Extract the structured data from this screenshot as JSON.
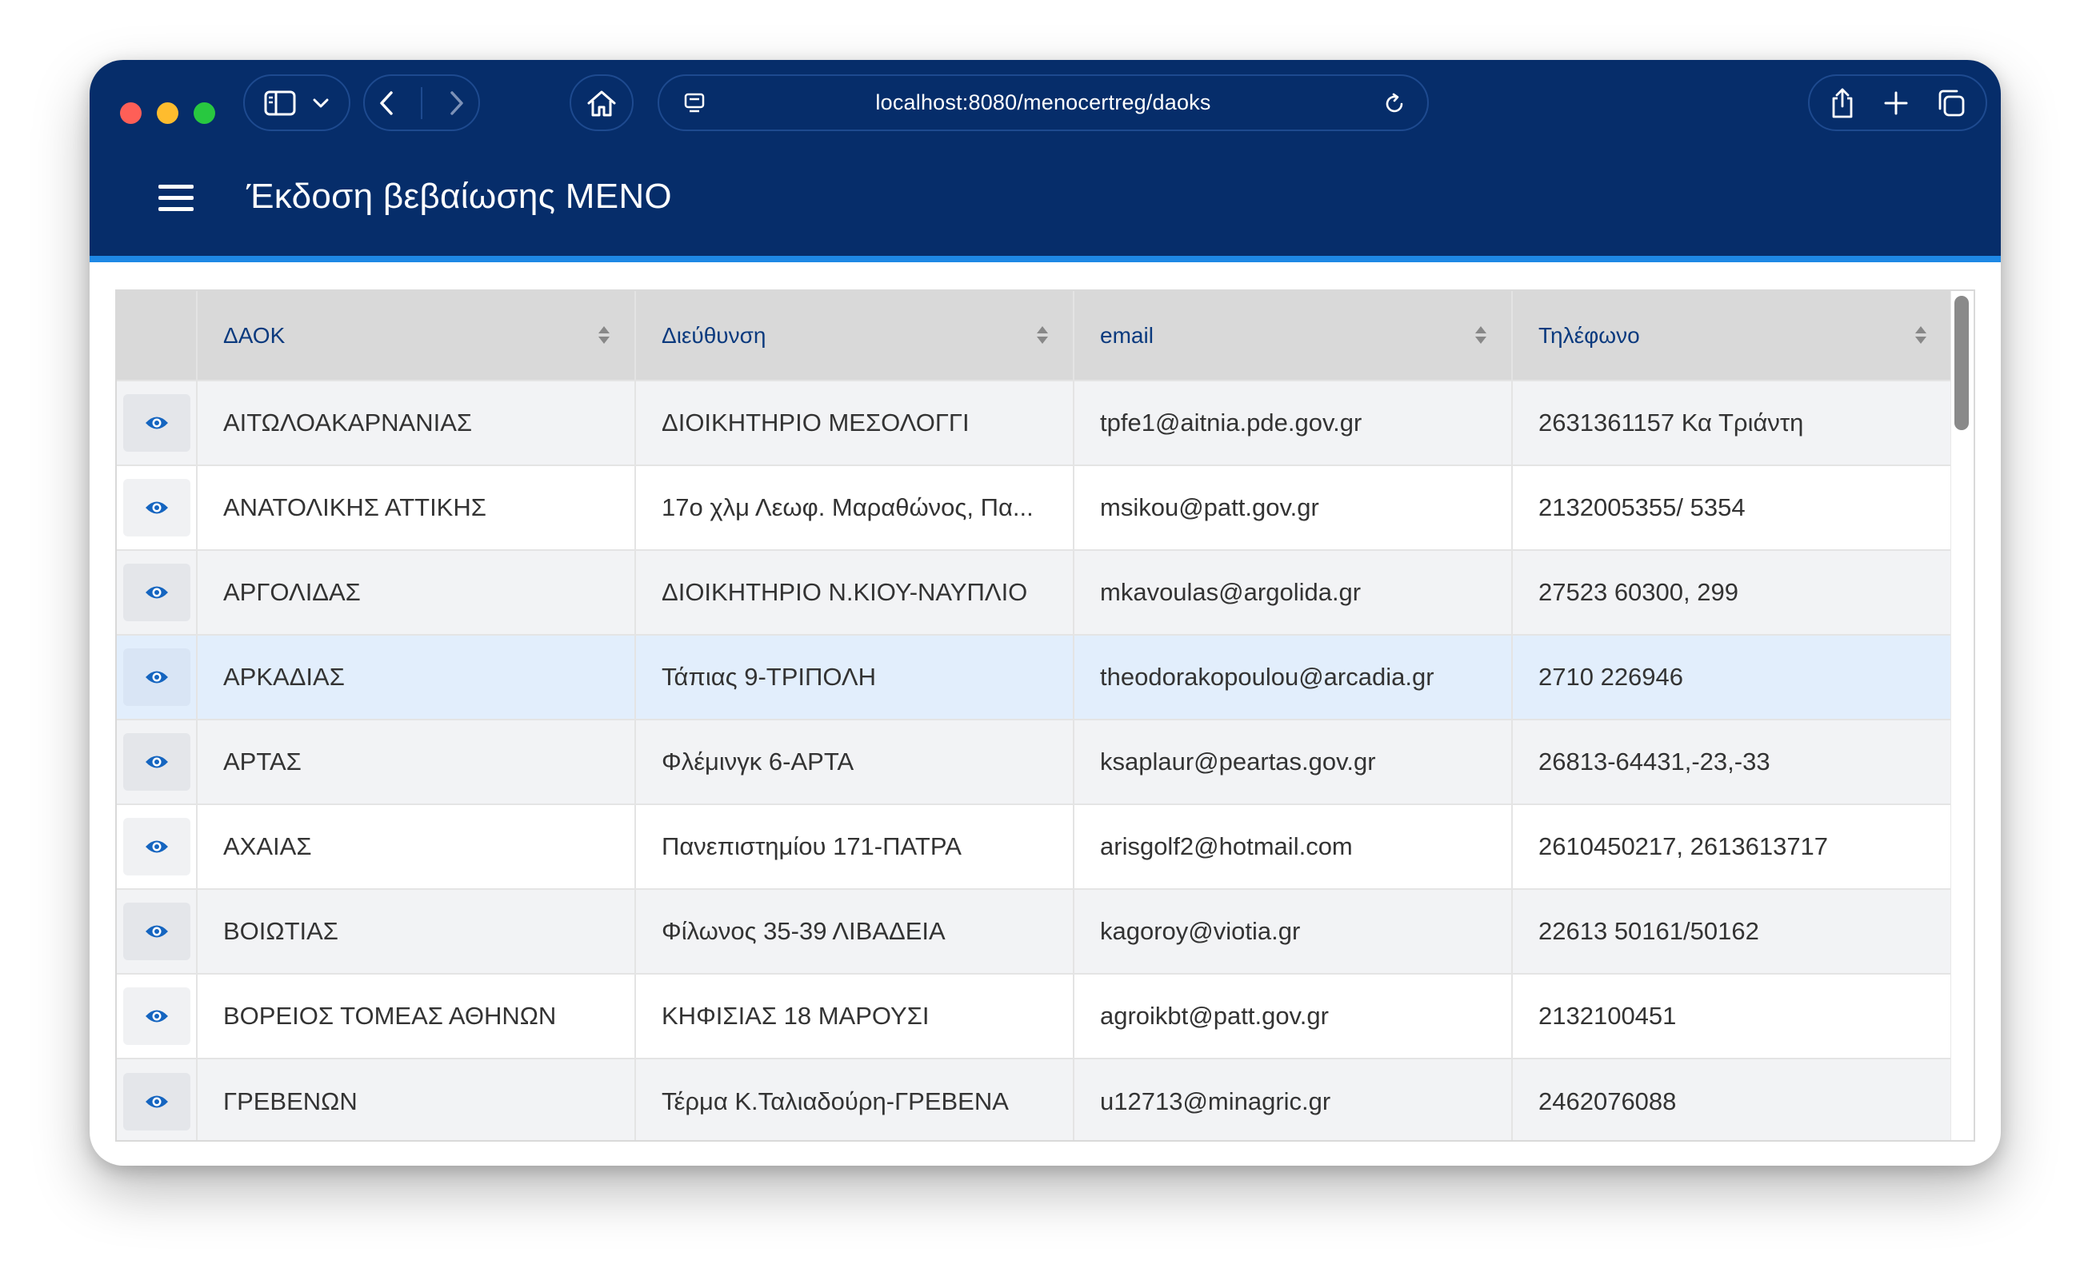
{
  "browser": {
    "url": "localhost:8080/menocertreg/daoks"
  },
  "header": {
    "title": "Έκδοση βεβαίωσης ΜΕΝΟ"
  },
  "table": {
    "columns": [
      "",
      "ΔΑΟΚ",
      "Διεύθυνση",
      "email",
      "Τηλέφωνο"
    ],
    "selected_row": 3,
    "rows": [
      {
        "daok": "ΑΙΤΩΛΟΑΚΑΡΝΑΝΙΑΣ",
        "address": "ΔΙΟΙΚΗΤΗΡΙΟ ΜΕΣΟΛΟΓΓΙ",
        "email": "tpfe1@aitnia.pde.gov.gr",
        "phone": "2631361157 Κα Τριάντη"
      },
      {
        "daok": "ΑΝΑΤΟΛΙΚΗΣ ΑΤΤΙΚΗΣ",
        "address": "17ο χλμ Λεωφ. Μαραθώνος, Πα...",
        "email": "msikou@patt.gov.gr",
        "phone": "2132005355/ 5354"
      },
      {
        "daok": "ΑΡΓΟΛΙΔΑΣ",
        "address": "ΔΙΟΙΚΗΤΗΡΙΟ Ν.ΚΙΟΥ-ΝΑΥΠΛΙΟ",
        "email": "mkavoulas@argolida.gr",
        "phone": "27523 60300, 299"
      },
      {
        "daok": "ΑΡΚΑΔΙΑΣ",
        "address": "Τάπιας 9-ΤΡΙΠΟΛΗ",
        "email": "theodorakopoulou@arcadia.gr",
        "phone": "2710 226946"
      },
      {
        "daok": "ΑΡΤΑΣ",
        "address": "Φλέμινγκ 6-ΑΡΤΑ",
        "email": "ksaplaur@peartas.gov.gr",
        "phone": "26813-64431,-23,-33"
      },
      {
        "daok": "ΑΧΑΙΑΣ",
        "address": "Πανεπιστημίου 171-ΠΑΤΡΑ",
        "email": "arisgolf2@hotmail.com",
        "phone": "2610450217, 2613613717"
      },
      {
        "daok": "ΒΟΙΩΤΙΑΣ",
        "address": "Φίλωνος 35-39 ΛΙΒΑΔΕΙΑ",
        "email": "kagoroy@viotia.gr",
        "phone": "22613 50161/50162"
      },
      {
        "daok": "ΒΟΡΕΙΟΣ ΤΟΜΕΑΣ ΑΘΗΝΩΝ",
        "address": "ΚΗΦΙΣΙΑΣ 18 ΜΑΡΟΥΣΙ",
        "email": "agroikbt@patt.gov.gr",
        "phone": "2132100451"
      },
      {
        "daok": "ΓΡΕΒΕΝΩΝ",
        "address": "Τέρμα Κ.Ταλιαδούρη-ΓΡΕΒΕΝΑ",
        "email": "u12713@minagric.gr",
        "phone": "2462076088"
      }
    ]
  },
  "colors": {
    "header_bg": "#062d6a",
    "accent": "#1e88e5",
    "link_blue": "#1565c0",
    "selected_row": "#e2eefc"
  },
  "icons": {
    "row_action": "eye-icon",
    "sort": "sort-icon",
    "menu": "hamburger-icon"
  }
}
